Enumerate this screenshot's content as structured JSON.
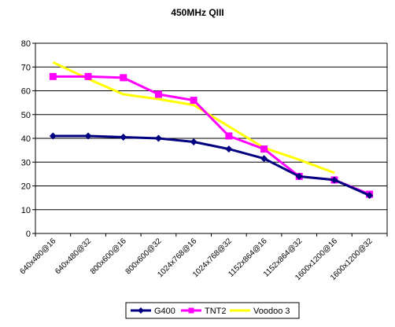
{
  "chart_data": {
    "type": "line",
    "title": "450MHz QIII",
    "xlabel": "",
    "ylabel": "",
    "ylim": [
      0,
      80
    ],
    "yticks": [
      0,
      10,
      20,
      30,
      40,
      50,
      60,
      70,
      80
    ],
    "grid": true,
    "legend_position": "bottom",
    "categories": [
      "640x480@16",
      "640x480@32",
      "800x600@16",
      "800x600@32",
      "1024x768@16",
      "1024x768@32",
      "1152x864@16",
      "1152x864@32",
      "1600x1200@16",
      "1600x1200@32"
    ],
    "series": [
      {
        "name": "G400",
        "color": "#000080",
        "marker": "diamond",
        "values": [
          41,
          41,
          40.5,
          40,
          38.5,
          35.5,
          31.5,
          24,
          22.5,
          16
        ]
      },
      {
        "name": "TNT2",
        "color": "#ff00ff",
        "marker": "square",
        "values": [
          66,
          66,
          65.5,
          58.5,
          56,
          41,
          35.5,
          24,
          22.5,
          16.5
        ]
      },
      {
        "name": "Voodoo 3",
        "color": "#ffff00",
        "marker": "none",
        "values": [
          72,
          65,
          58.5,
          56.5,
          54,
          45,
          36,
          31,
          25.5,
          null
        ]
      }
    ]
  }
}
